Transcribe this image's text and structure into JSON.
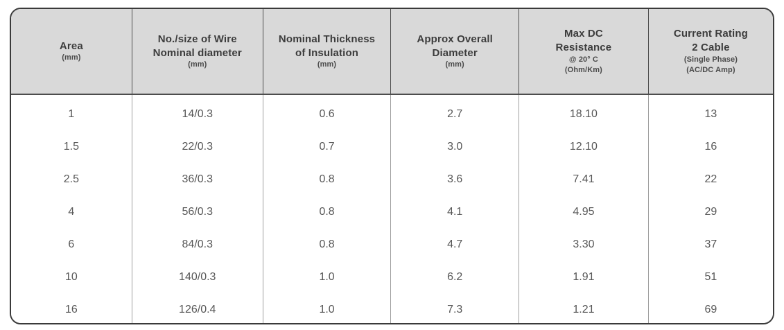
{
  "colors": {
    "header_bg": "#d9d9d9",
    "border_dark": "#3a3a3a",
    "divider_header": "#4d4d4d",
    "divider_body": "#9e9e9e",
    "header_text": "#3c3c3c",
    "header_subtext": "#4a4a4a",
    "data_text": "#575757"
  },
  "table": {
    "columns": [
      {
        "id": "area",
        "width_pct": 15.9,
        "title_lines": [
          "Area"
        ],
        "sub_lines": [
          "(mm)"
        ]
      },
      {
        "id": "wire",
        "width_pct": 17.2,
        "title_lines": [
          "No./size of Wire",
          "Nominal diameter"
        ],
        "sub_lines": [
          "(mm)"
        ]
      },
      {
        "id": "insulation",
        "width_pct": 16.8,
        "title_lines": [
          "Nominal Thickness",
          "of Insulation"
        ],
        "sub_lines": [
          "(mm)"
        ]
      },
      {
        "id": "diameter",
        "width_pct": 16.8,
        "title_lines": [
          "Approx Overall",
          "Diameter"
        ],
        "sub_lines": [
          "(mm)"
        ]
      },
      {
        "id": "resistance",
        "width_pct": 17.0,
        "title_lines": [
          "Max DC",
          "Resistance"
        ],
        "sub_lines": [
          "@ 20° C",
          "(Ohm/Km)"
        ]
      },
      {
        "id": "current",
        "width_pct": 16.3,
        "title_lines": [
          "Current Rating",
          "2 Cable"
        ],
        "sub_lines": [
          "(Single Phase)",
          "(AC/DC Amp)"
        ]
      }
    ],
    "rows": [
      [
        "1",
        "14/0.3",
        "0.6",
        "2.7",
        "18.10",
        "13"
      ],
      [
        "1.5",
        "22/0.3",
        "0.7",
        "3.0",
        "12.10",
        "16"
      ],
      [
        "2.5",
        "36/0.3",
        "0.8",
        "3.6",
        "7.41",
        "22"
      ],
      [
        "4",
        "56/0.3",
        "0.8",
        "4.1",
        "4.95",
        "29"
      ],
      [
        "6",
        "84/0.3",
        "0.8",
        "4.7",
        "3.30",
        "37"
      ],
      [
        "10",
        "140/0.3",
        "1.0",
        "6.2",
        "1.91",
        "51"
      ],
      [
        "16",
        "126/0.4",
        "1.0",
        "7.3",
        "1.21",
        "69"
      ]
    ]
  },
  "chart_data": {
    "type": "table",
    "columns": [
      "Area (mm)",
      "No./size of Wire Nominal diameter (mm)",
      "Nominal Thickness of Insulation (mm)",
      "Approx Overall Diameter (mm)",
      "Max DC Resistance @ 20° C (Ohm/Km)",
      "Current Rating 2 Cable (Single Phase) (AC/DC Amp)"
    ],
    "rows": [
      [
        "1",
        "14/0.3",
        "0.6",
        "2.7",
        "18.10",
        "13"
      ],
      [
        "1.5",
        "22/0.3",
        "0.7",
        "3.0",
        "12.10",
        "16"
      ],
      [
        "2.5",
        "36/0.3",
        "0.8",
        "3.6",
        "7.41",
        "22"
      ],
      [
        "4",
        "56/0.3",
        "0.8",
        "4.1",
        "4.95",
        "29"
      ],
      [
        "6",
        "84/0.3",
        "0.8",
        "4.7",
        "3.30",
        "37"
      ],
      [
        "10",
        "140/0.3",
        "1.0",
        "6.2",
        "1.91",
        "51"
      ],
      [
        "16",
        "126/0.4",
        "1.0",
        "7.3",
        "1.21",
        "69"
      ]
    ]
  }
}
